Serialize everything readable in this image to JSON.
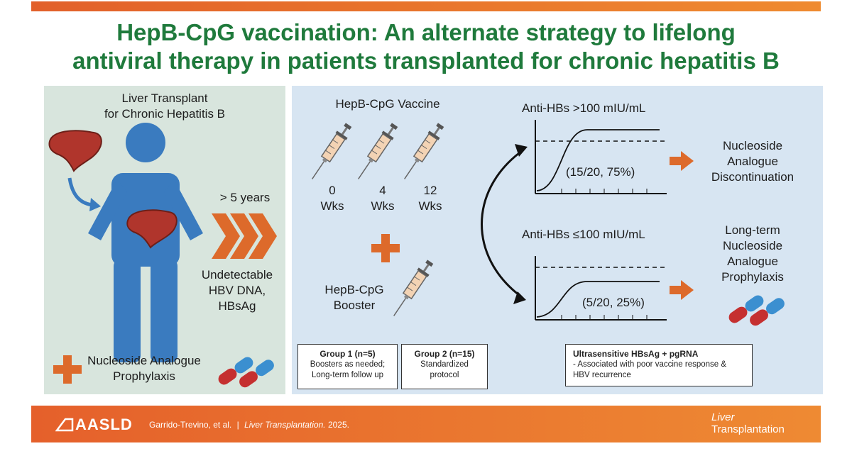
{
  "title": {
    "line1": "HepB-CpG vaccination: An alternate strategy to lifelong",
    "line2": "antiviral therapy in patients transplanted for chronic hepatitis B"
  },
  "left": {
    "heading1": "Liver Transplant",
    "heading2": "for Chronic Hepatitis B",
    "duration": "> 5 years",
    "status1": "Undetectable",
    "status2": "HBV DNA,",
    "status3": "HBsAg",
    "prophylaxis1": "Nucleoside Analogue",
    "prophylaxis2": "Prophylaxis"
  },
  "vaccine": {
    "heading": "HepB-CpG Vaccine",
    "doses": [
      {
        "num": "0",
        "unit": "Wks"
      },
      {
        "num": "4",
        "unit": "Wks"
      },
      {
        "num": "12",
        "unit": "Wks"
      }
    ],
    "booster1": "HepB-CpG",
    "booster2": "Booster"
  },
  "groups": [
    {
      "title": "Group 1 (n=5)",
      "line1": "Boosters as needed;",
      "line2": "Long-term follow up"
    },
    {
      "title": "Group 2 (n=15)",
      "line1": "Standardized",
      "line2": "protocol"
    }
  ],
  "biomarker": {
    "title": "Ultrasensitive HBsAg + pgRNA",
    "line1": "- Associated with poor vaccine response &",
    "line2": "HBV recurrence"
  },
  "outcomes": {
    "high_label": "Anti-HBs >100 mIU/mL",
    "high_value": "(15/20, 75%)",
    "high_result": [
      "Nucleoside",
      "Analogue",
      "Discontinuation"
    ],
    "low_label": "Anti-HBs ≤100 mIU/mL",
    "low_value": "(5/20, 25%)",
    "low_result": [
      "Long-term",
      "Nucleoside",
      "Analogue",
      "Prophylaxis"
    ]
  },
  "footer": {
    "brand": "AASLD",
    "citation_authors": "Garrido-Trevino, et al.",
    "citation_sep": "|",
    "citation_journal": "Liver Transplantation.",
    "citation_year": "2025.",
    "journal_logo1": "Liver",
    "journal_logo2": "Transplantation"
  },
  "colors": {
    "title_green": "#1f7a3c",
    "orange": "#e5602b",
    "liver_red": "#b0352c",
    "person_blue": "#3a7bbf",
    "left_bg": "#d8e5dd",
    "right_bg": "#d7e5f2"
  },
  "icons": [
    "liver-icon",
    "person-icon",
    "arrow-icon",
    "chevron-icon",
    "syringe-icon",
    "plus-icon",
    "pill-icon",
    "aasld-logo-icon"
  ]
}
